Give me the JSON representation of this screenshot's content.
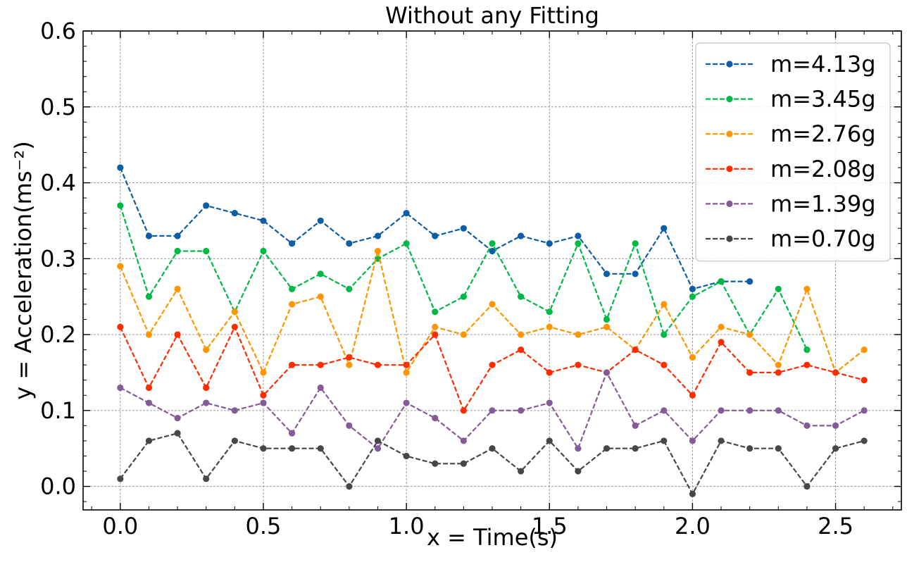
{
  "chart_data": {
    "type": "line",
    "title": "Without any Fitting",
    "xlabel": "x = Time(s)",
    "ylabel": "y = Acceleration(ms⁻²)",
    "xlim": [
      -0.13,
      2.73
    ],
    "ylim": [
      -0.031,
      0.6
    ],
    "xticks": [
      0.0,
      0.5,
      1.0,
      1.5,
      2.0,
      2.5
    ],
    "yticks": [
      0.0,
      0.1,
      0.2,
      0.3,
      0.4,
      0.5,
      0.6
    ],
    "grid": true,
    "legend_position": "top-right",
    "series": [
      {
        "name": "m=4.13g",
        "color": "#0C5DA5",
        "x": [
          0.0,
          0.1,
          0.2,
          0.3,
          0.4,
          0.5,
          0.6,
          0.7,
          0.8,
          0.9,
          1.0,
          1.1,
          1.2,
          1.3,
          1.4,
          1.5,
          1.6,
          1.7,
          1.8,
          1.9,
          2.0,
          2.1,
          2.2
        ],
        "values": [
          0.42,
          0.33,
          0.33,
          0.37,
          0.36,
          0.35,
          0.32,
          0.35,
          0.32,
          0.33,
          0.36,
          0.33,
          0.34,
          0.31,
          0.33,
          0.32,
          0.33,
          0.28,
          0.28,
          0.34,
          0.26,
          0.27,
          0.27
        ]
      },
      {
        "name": "m=3.45g",
        "color": "#00B945",
        "x": [
          0.0,
          0.1,
          0.2,
          0.3,
          0.4,
          0.5,
          0.6,
          0.7,
          0.8,
          0.9,
          1.0,
          1.1,
          1.2,
          1.3,
          1.4,
          1.5,
          1.6,
          1.7,
          1.8,
          1.9,
          2.0,
          2.1,
          2.2,
          2.3,
          2.4
        ],
        "values": [
          0.37,
          0.25,
          0.31,
          0.31,
          0.23,
          0.31,
          0.26,
          0.28,
          0.26,
          0.3,
          0.32,
          0.23,
          0.25,
          0.32,
          0.25,
          0.23,
          0.32,
          0.22,
          0.32,
          0.2,
          0.25,
          0.27,
          0.2,
          0.26,
          0.18
        ]
      },
      {
        "name": "m=2.76g",
        "color": "#FF9500",
        "x": [
          0.0,
          0.1,
          0.2,
          0.3,
          0.4,
          0.5,
          0.6,
          0.7,
          0.8,
          0.9,
          1.0,
          1.1,
          1.2,
          1.3,
          1.4,
          1.5,
          1.6,
          1.7,
          1.8,
          1.9,
          2.0,
          2.1,
          2.2,
          2.3,
          2.4,
          2.5,
          2.6
        ],
        "values": [
          0.29,
          0.2,
          0.26,
          0.18,
          0.23,
          0.15,
          0.24,
          0.25,
          0.16,
          0.31,
          0.15,
          0.21,
          0.2,
          0.24,
          0.2,
          0.21,
          0.2,
          0.21,
          0.18,
          0.24,
          0.17,
          0.21,
          0.2,
          0.16,
          0.26,
          0.15,
          0.18
        ]
      },
      {
        "name": "m=2.08g",
        "color": "#FF2C00",
        "x": [
          0.0,
          0.1,
          0.2,
          0.3,
          0.4,
          0.5,
          0.6,
          0.7,
          0.8,
          0.9,
          1.0,
          1.1,
          1.2,
          1.3,
          1.4,
          1.5,
          1.6,
          1.7,
          1.8,
          1.9,
          2.0,
          2.1,
          2.2,
          2.3,
          2.4,
          2.5,
          2.6
        ],
        "values": [
          0.21,
          0.13,
          0.2,
          0.13,
          0.21,
          0.12,
          0.16,
          0.16,
          0.17,
          0.16,
          0.16,
          0.2,
          0.1,
          0.16,
          0.18,
          0.15,
          0.16,
          0.15,
          0.18,
          0.16,
          0.12,
          0.19,
          0.15,
          0.15,
          0.16,
          0.15,
          0.14
        ]
      },
      {
        "name": "m=1.39g",
        "color": "#845B97",
        "x": [
          0.0,
          0.1,
          0.2,
          0.3,
          0.4,
          0.5,
          0.6,
          0.7,
          0.8,
          0.9,
          1.0,
          1.1,
          1.2,
          1.3,
          1.4,
          1.5,
          1.6,
          1.7,
          1.8,
          1.9,
          2.0,
          2.1,
          2.2,
          2.3,
          2.4,
          2.5,
          2.6
        ],
        "values": [
          0.13,
          0.11,
          0.09,
          0.11,
          0.1,
          0.11,
          0.07,
          0.13,
          0.08,
          0.05,
          0.11,
          0.09,
          0.06,
          0.1,
          0.1,
          0.11,
          0.05,
          0.15,
          0.08,
          0.1,
          0.06,
          0.1,
          0.1,
          0.1,
          0.08,
          0.08,
          0.1
        ]
      },
      {
        "name": "m=0.70g",
        "color": "#474747",
        "x": [
          0.0,
          0.1,
          0.2,
          0.3,
          0.4,
          0.5,
          0.6,
          0.7,
          0.8,
          0.9,
          1.0,
          1.1,
          1.2,
          1.3,
          1.4,
          1.5,
          1.6,
          1.7,
          1.8,
          1.9,
          2.0,
          2.1,
          2.2,
          2.3,
          2.4,
          2.5,
          2.6
        ],
        "values": [
          0.01,
          0.06,
          0.07,
          0.01,
          0.06,
          0.05,
          0.05,
          0.05,
          0.0,
          0.06,
          0.04,
          0.03,
          0.03,
          0.05,
          0.02,
          0.06,
          0.02,
          0.05,
          0.05,
          0.06,
          -0.01,
          0.06,
          0.05,
          0.05,
          0.0,
          0.05,
          0.06
        ]
      }
    ]
  }
}
